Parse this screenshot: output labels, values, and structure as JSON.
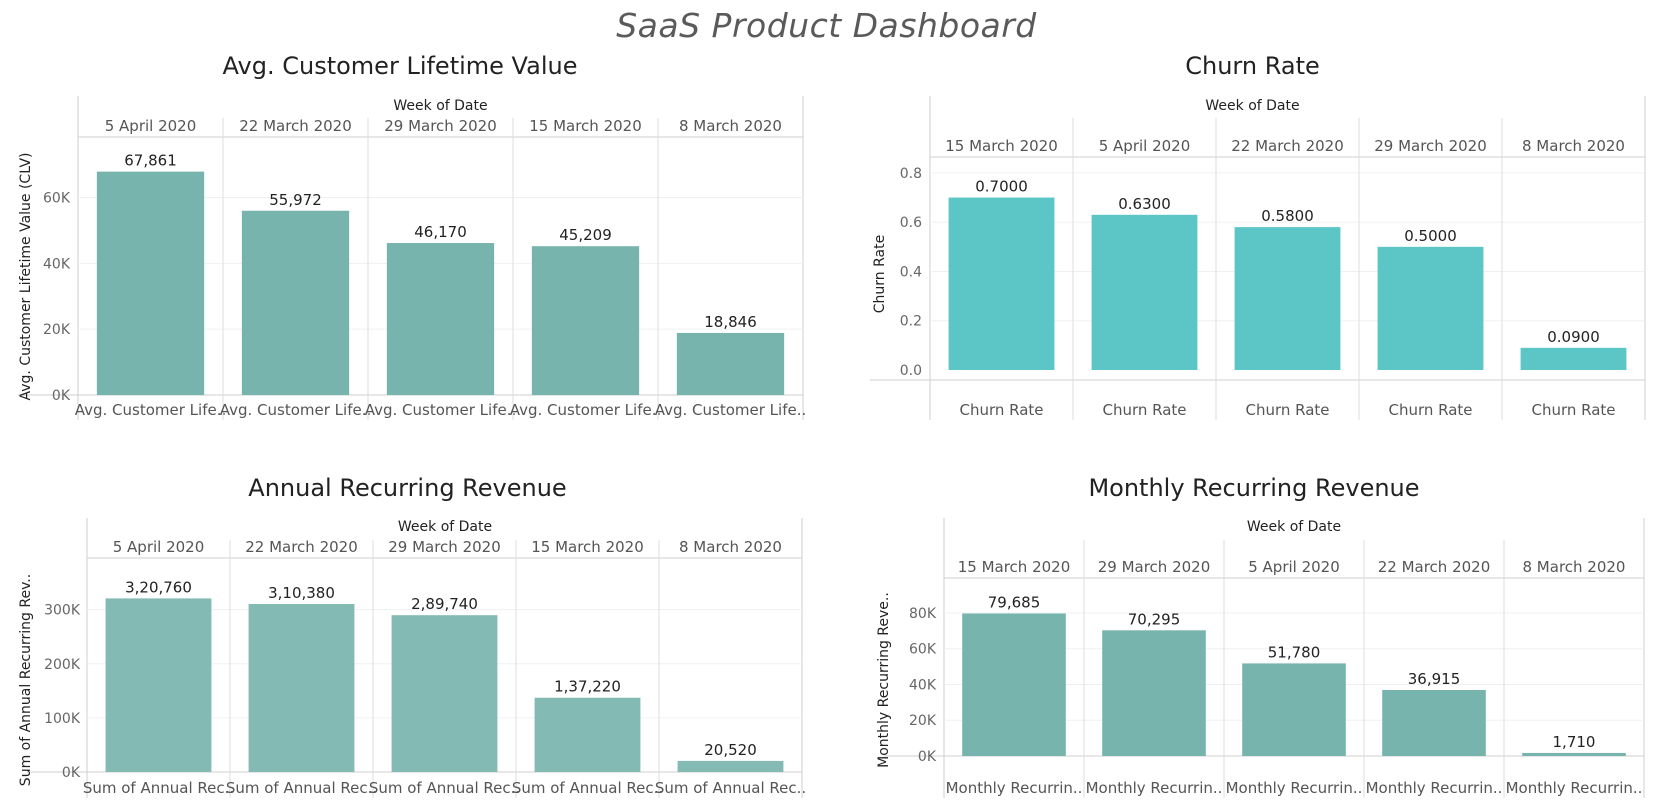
{
  "dashboard_title": "SaaS Product Dashboard",
  "chart_data": [
    {
      "id": "clv",
      "type": "bar",
      "title": "Avg. Customer Lifetime Value",
      "column_header_title": "Week of Date",
      "ylabel": "Avg. Customer Lifetime Value (CLV)",
      "categories": [
        "5 April 2020",
        "22 March 2020",
        "29 March 2020",
        "15 March 2020",
        "8 March 2020"
      ],
      "values": [
        67861,
        55972,
        46170,
        45209,
        18846
      ],
      "data_labels": [
        "67,861",
        "55,972",
        "46,170",
        "45,209",
        "18,846"
      ],
      "measure_labels": [
        "Avg. Customer Life..",
        "Avg. Customer Life..",
        "Avg. Customer Life..",
        "Avg. Customer Life..",
        "Avg. Customer Life.."
      ],
      "yticks": [
        0,
        20000,
        40000,
        60000
      ],
      "ytick_labels": [
        "0K",
        "20K",
        "40K",
        "60K"
      ],
      "ylim": [
        0,
        72000
      ],
      "bar_color": "#78b4ae"
    },
    {
      "id": "churn",
      "type": "bar",
      "title": "Churn Rate",
      "column_header_title": "Week of Date",
      "ylabel": "Churn Rate",
      "categories": [
        "15 March 2020",
        "5 April 2020",
        "22 March 2020",
        "29 March 2020",
        "8 March 2020"
      ],
      "values": [
        0.7,
        0.63,
        0.58,
        0.5,
        0.09
      ],
      "data_labels": [
        "0.7000",
        "0.6300",
        "0.5800",
        "0.5000",
        "0.0900"
      ],
      "measure_labels": [
        "Churn Rate",
        "Churn Rate",
        "Churn Rate",
        "Churn Rate",
        "Churn Rate"
      ],
      "yticks": [
        0,
        0.2,
        0.4,
        0.6,
        0.8
      ],
      "ytick_labels": [
        "0.0",
        "0.2",
        "0.4",
        "0.6",
        "0.8"
      ],
      "ylim": [
        -0.04,
        0.82
      ],
      "bar_color": "#5cc6c6"
    },
    {
      "id": "arr",
      "type": "bar",
      "title": "Annual Recurring Revenue",
      "column_header_title": "Week of Date",
      "ylabel": "Sum of Annual Recurring Rev..",
      "categories": [
        "5 April 2020",
        "22 March 2020",
        "29 March 2020",
        "15 March 2020",
        "8 March 2020"
      ],
      "values": [
        320760,
        310380,
        289740,
        137220,
        20520
      ],
      "data_labels": [
        "3,20,760",
        "3,10,380",
        "2,89,740",
        "1,37,220",
        "20,520"
      ],
      "measure_labels": [
        "Sum of Annual Rec..",
        "Sum of Annual Rec..",
        "Sum of Annual Rec..",
        "Sum of Annual Rec..",
        "Sum of Annual Rec.."
      ],
      "yticks": [
        0,
        100000,
        200000,
        300000
      ],
      "ytick_labels": [
        "0K",
        "100K",
        "200K",
        "300K"
      ],
      "ylim": [
        0,
        340000
      ],
      "bar_color": "#84bab4"
    },
    {
      "id": "mrr",
      "type": "bar",
      "title": "Monthly Recurring Revenue",
      "column_header_title": "Week of Date",
      "ylabel": "Monthly Recurring Reve..",
      "categories": [
        "15 March 2020",
        "29 March 2020",
        "5 April 2020",
        "22 March 2020",
        "8 March 2020"
      ],
      "values": [
        79685,
        70295,
        51780,
        36915,
        1710
      ],
      "data_labels": [
        "79,685",
        "70,295",
        "51,780",
        "36,915",
        "1,710"
      ],
      "measure_labels": [
        "Monthly Recurrin..",
        "Monthly Recurrin..",
        "Monthly Recurrin..",
        "Monthly Recurrin..",
        "Monthly Recurrin.."
      ],
      "yticks": [
        0,
        20000,
        40000,
        60000,
        80000
      ],
      "ytick_labels": [
        "0K",
        "20K",
        "40K",
        "60K",
        "80K"
      ],
      "ylim": [
        0,
        85000
      ],
      "bar_color": "#78b4ae"
    }
  ]
}
